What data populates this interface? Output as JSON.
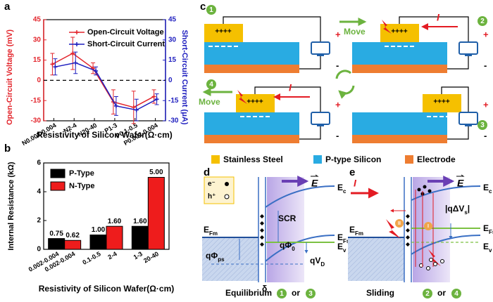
{
  "chart_data": [
    {
      "type": "line",
      "label": "a",
      "categories": [
        "N0.002-0.004",
        "N2-4",
        "N20-40",
        "P1-3",
        "P0.1-0.5",
        "P0.002-0.004"
      ],
      "x_label": "Resistivity of Silicon Wafer(Ω·cm)",
      "y_label": "Open-Circuit Voltage (mV)",
      "y_color": "#e3242b",
      "y2_label": "Short-Circuit Current (μA)",
      "y2_color": "#1f1fbf",
      "ylim": [
        -30,
        45
      ],
      "yticks": [
        -30,
        -15,
        0,
        15,
        30,
        45
      ],
      "y2lim": [
        -30,
        45
      ],
      "y2ticks": [
        -30,
        -15,
        0,
        15,
        30,
        45
      ],
      "legend": "upper right",
      "series": [
        {
          "name": "Open-Circuit Voltage",
          "color": "#e3242b",
          "values": [
            12,
            20,
            9,
            -16,
            -20,
            -12
          ],
          "errors": [
            8,
            12,
            4,
            9,
            12,
            5
          ]
        },
        {
          "name": "Short-Circuit Current",
          "color": "#1f1fbf",
          "axis": "y2",
          "values": [
            10,
            13,
            7,
            -19,
            -22,
            -14
          ],
          "errors": [
            6,
            8,
            3,
            7,
            8,
            4
          ]
        }
      ]
    },
    {
      "type": "bar",
      "label": "b",
      "x_label": "Resistivity of Silicon Wafer(Ω·cm)",
      "y_label": "Internal Resistance (kΩ)",
      "ylim": [
        0,
        6
      ],
      "yticks": [
        0,
        2,
        4,
        6
      ],
      "legend": "upper left",
      "series": [
        {
          "name": "P-Type",
          "color": "#000000",
          "categories": [
            "0.002-0.004",
            "0.1-0.5",
            "1-3"
          ],
          "values": [
            0.75,
            1.0,
            1.6
          ],
          "value_labels": [
            "0.75",
            "1.00",
            "1.60"
          ]
        },
        {
          "name": "N-Type",
          "color": "#ee1c1c",
          "categories": [
            "0.002-0.004",
            "2-4",
            "20-40"
          ],
          "values": [
            0.62,
            1.6,
            5.0
          ],
          "value_labels": [
            "0.62",
            "1.60",
            "5.00"
          ]
        }
      ]
    }
  ],
  "cycle": {
    "label": "c",
    "steps": [
      "1",
      "2",
      "3",
      "4"
    ],
    "charges": "++++",
    "move": "Move",
    "current": "I",
    "plus": "+",
    "minus": "-",
    "legend": [
      {
        "name": "Stainless Steel",
        "color": "#f5c000"
      },
      {
        "name": "P-type Silicon",
        "color": "#29abe2"
      },
      {
        "name": "Electrode",
        "color": "#ee7d31"
      }
    ]
  },
  "equilibrium": {
    "label": "d",
    "electron": "e⁻",
    "hole": "h⁺",
    "field": "E",
    "Ec": {
      "main": "E",
      "sub": "c"
    },
    "Ev": {
      "main": "E",
      "sub": "v"
    },
    "EFm": {
      "main": "E",
      "sub": "Fm"
    },
    "EFs": {
      "main": "E",
      "sub": "Fs"
    },
    "scr": "SCR",
    "phi_ps": {
      "main": "qΦ",
      "sub": "ps"
    },
    "phi0": {
      "main": "qΦ",
      "sub": "0"
    },
    "vd": {
      "main": "qV",
      "sub": "D"
    },
    "delta": "δ",
    "caption": "Equilibrium",
    "steps": [
      "1",
      "3"
    ],
    "or": "or"
  },
  "sliding": {
    "label": "e",
    "current": "I",
    "field": "E",
    "Ec": {
      "main": "E",
      "sub": "c"
    },
    "Ev": {
      "main": "E",
      "sub": "v"
    },
    "EFm": {
      "main": "E",
      "sub": "Fm"
    },
    "EFs": {
      "main": "E",
      "sub": "Fs"
    },
    "dvs": {
      "main": "|qΔV",
      "sub": "s",
      "end": "|"
    },
    "paths": [
      "II",
      "I"
    ],
    "caption": "Sliding",
    "steps": [
      "2",
      "4"
    ],
    "or": "or"
  }
}
